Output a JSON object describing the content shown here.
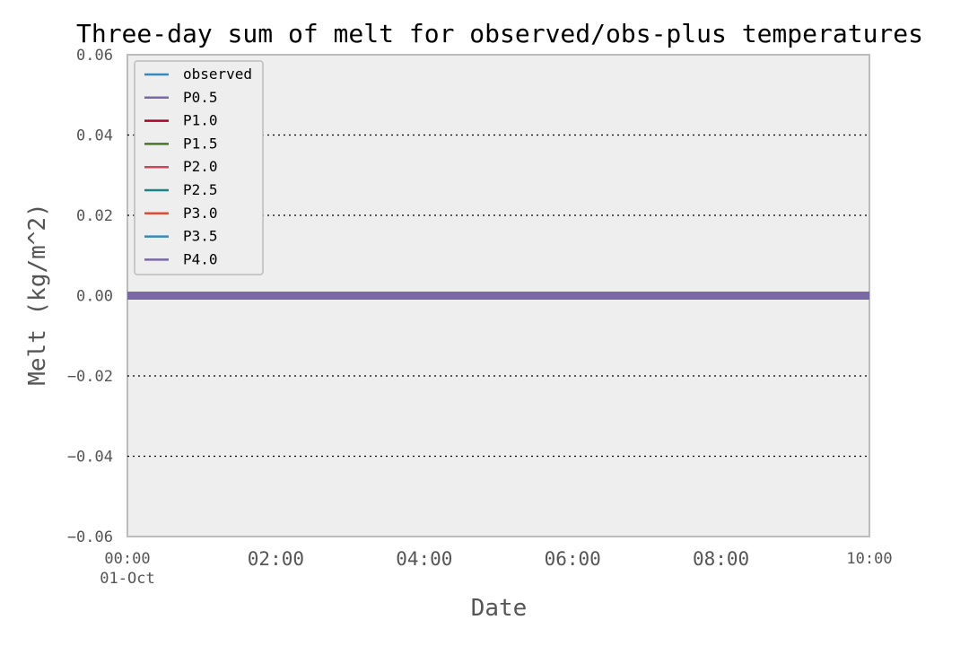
{
  "chart_data": {
    "type": "line",
    "title": "Three-day sum of melt for observed/obs-plus temperatures",
    "xlabel": "Date",
    "ylabel": "Melt (kg/m^2)",
    "xlim_hours": [
      0,
      10
    ],
    "ylim": [
      -0.06,
      0.06
    ],
    "y_ticks": [
      -0.06,
      -0.04,
      -0.02,
      0.0,
      0.02,
      0.04,
      0.06
    ],
    "y_tick_labels": [
      "−0.06",
      "−0.04",
      "−0.02",
      "0.00",
      "0.02",
      "0.04",
      "0.06"
    ],
    "x_ticks": [
      {
        "hour": 0,
        "label": "00:00",
        "sublabel": "01-Oct"
      },
      {
        "hour": 2,
        "label": "02:00"
      },
      {
        "hour": 4,
        "label": "04:00"
      },
      {
        "hour": 6,
        "label": "06:00"
      },
      {
        "hour": 8,
        "label": "08:00"
      },
      {
        "hour": 10,
        "label": "10:00"
      }
    ],
    "grid": "dotted horizontal",
    "legend_position": "top-left",
    "series": [
      {
        "name": "observed",
        "color": "#348ABD",
        "x": [
          0,
          10
        ],
        "y": [
          0,
          0
        ]
      },
      {
        "name": "P0.5",
        "color": "#7A68A6",
        "x": [
          0,
          10
        ],
        "y": [
          0,
          0
        ]
      },
      {
        "name": "P1.0",
        "color": "#A60628",
        "x": [
          0,
          10
        ],
        "y": [
          0,
          0
        ]
      },
      {
        "name": "P1.5",
        "color": "#467821",
        "x": [
          0,
          10
        ],
        "y": [
          0,
          0
        ]
      },
      {
        "name": "P2.0",
        "color": "#CF4457",
        "x": [
          0,
          10
        ],
        "y": [
          0,
          0
        ]
      },
      {
        "name": "P2.5",
        "color": "#188487",
        "x": [
          0,
          10
        ],
        "y": [
          0,
          0
        ]
      },
      {
        "name": "P3.0",
        "color": "#E24A33",
        "x": [
          0,
          10
        ],
        "y": [
          0,
          0
        ]
      },
      {
        "name": "P3.5",
        "color": "#348ABD",
        "x": [
          0,
          10
        ],
        "y": [
          0,
          0
        ]
      },
      {
        "name": "P4.0",
        "color": "#7A68A6",
        "x": [
          0,
          10
        ],
        "y": [
          0,
          0
        ]
      }
    ]
  }
}
